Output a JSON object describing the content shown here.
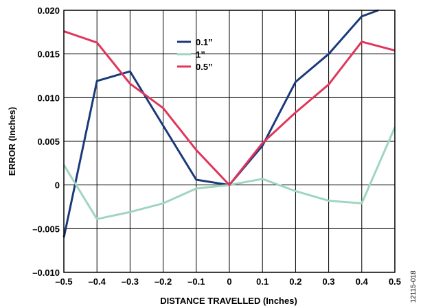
{
  "chart_data": {
    "type": "line",
    "xlabel": "DISTANCE TRAVELLED (Inches)",
    "ylabel": "ERROR (Inches)",
    "xlim": [
      -0.5,
      0.5
    ],
    "ylim": [
      -0.01,
      0.02
    ],
    "x_ticks": [
      -0.5,
      -0.4,
      -0.3,
      -0.2,
      -0.1,
      0,
      0.1,
      0.2,
      0.3,
      0.4,
      0.5
    ],
    "x_tick_labels": [
      "–0.5",
      "–0.4",
      "–0.3",
      "–0.2",
      "–0.1",
      "0",
      "0.1",
      "0.2",
      "0.3",
      "0.4",
      "0.5"
    ],
    "y_ticks": [
      -0.01,
      -0.005,
      0,
      0.005,
      0.01,
      0.015,
      0.02
    ],
    "y_tick_labels": [
      "–0.010",
      "–0.005",
      "0",
      "0.005",
      "0.010",
      "0.015",
      "0.020"
    ],
    "grid": true,
    "legend_position": "top-center",
    "series": [
      {
        "name": "0.1”",
        "color": "#1b3a7a",
        "x": [
          -0.5,
          -0.4,
          -0.3,
          -0.2,
          -0.1,
          0,
          0.1,
          0.2,
          0.3,
          0.4,
          0.45
        ],
        "y": [
          -0.006,
          0.0119,
          0.013,
          0.0068,
          0.0006,
          0,
          0.0045,
          0.0118,
          0.015,
          0.0193,
          0.02
        ]
      },
      {
        "name": "1”",
        "color": "#9fd6bf",
        "x": [
          -0.5,
          -0.4,
          -0.3,
          -0.2,
          -0.1,
          0,
          0.1,
          0.2,
          0.3,
          0.4,
          0.5
        ],
        "y": [
          0.0023,
          -0.0039,
          -0.0031,
          -0.0021,
          -0.0004,
          0,
          0.0007,
          -0.0007,
          -0.0018,
          -0.0021,
          0.0066
        ]
      },
      {
        "name": "0.5”",
        "color": "#e0365a",
        "x": [
          -0.5,
          -0.4,
          -0.3,
          -0.2,
          -0.1,
          0,
          0.1,
          0.2,
          0.3,
          0.4,
          0.5
        ],
        "y": [
          0.0176,
          0.0163,
          0.0116,
          0.0088,
          0.004,
          0,
          0.0048,
          0.0083,
          0.0115,
          0.0164,
          0.0154
        ]
      }
    ]
  },
  "figure_id": "12115-018"
}
